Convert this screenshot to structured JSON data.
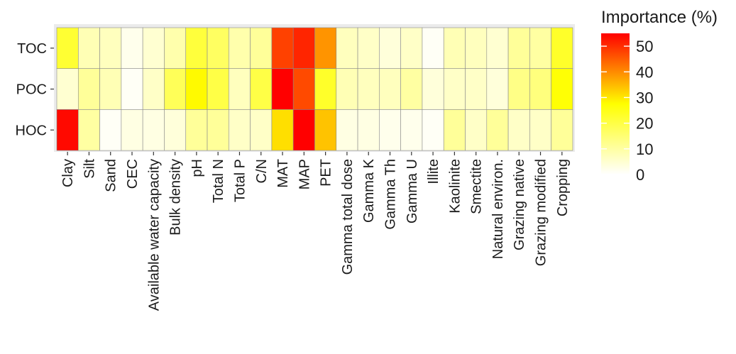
{
  "chart_data": {
    "type": "heatmap",
    "title": "",
    "xlabel": "",
    "ylabel": "",
    "legend": {
      "title": "Importance (%)",
      "position": "right",
      "ticks": [
        0,
        10,
        20,
        30,
        40,
        50
      ],
      "range": [
        0,
        55
      ],
      "colors": [
        "#ffffff",
        "#ffff00",
        "#ff0000"
      ]
    },
    "grid": true,
    "rows": [
      "TOC",
      "POC",
      "HOC"
    ],
    "columns": [
      "Clay",
      "Silt",
      "Sand",
      "CEC",
      "Available water capacity",
      "Bulk density",
      "pH",
      "Total N",
      "Total P",
      "C/N",
      "MAT",
      "MAP",
      "PET",
      "Gamma total dose",
      "Gamma K",
      "Gamma Th",
      "Gamma U",
      "Illite",
      "Kaolinite",
      "Smectite",
      "Natural environ.",
      "Grazing native",
      "Grazing modified",
      "Cropping"
    ],
    "values": [
      [
        22,
        8,
        7,
        2,
        5,
        9,
        21,
        17,
        9,
        11,
        48,
        51,
        39,
        7,
        6,
        4,
        6,
        1,
        8,
        7,
        5,
        11,
        10,
        23
      ],
      [
        5,
        11,
        8,
        1,
        6,
        18,
        28,
        20,
        7,
        20,
        55,
        47,
        23,
        8,
        7,
        7,
        10,
        4,
        6,
        6,
        4,
        13,
        14,
        27
      ],
      [
        54,
        10,
        1,
        3,
        3,
        4,
        11,
        11,
        6,
        6,
        31,
        56,
        34,
        3,
        3,
        2,
        2,
        1,
        11,
        6,
        11,
        6,
        6,
        11
      ]
    ]
  }
}
